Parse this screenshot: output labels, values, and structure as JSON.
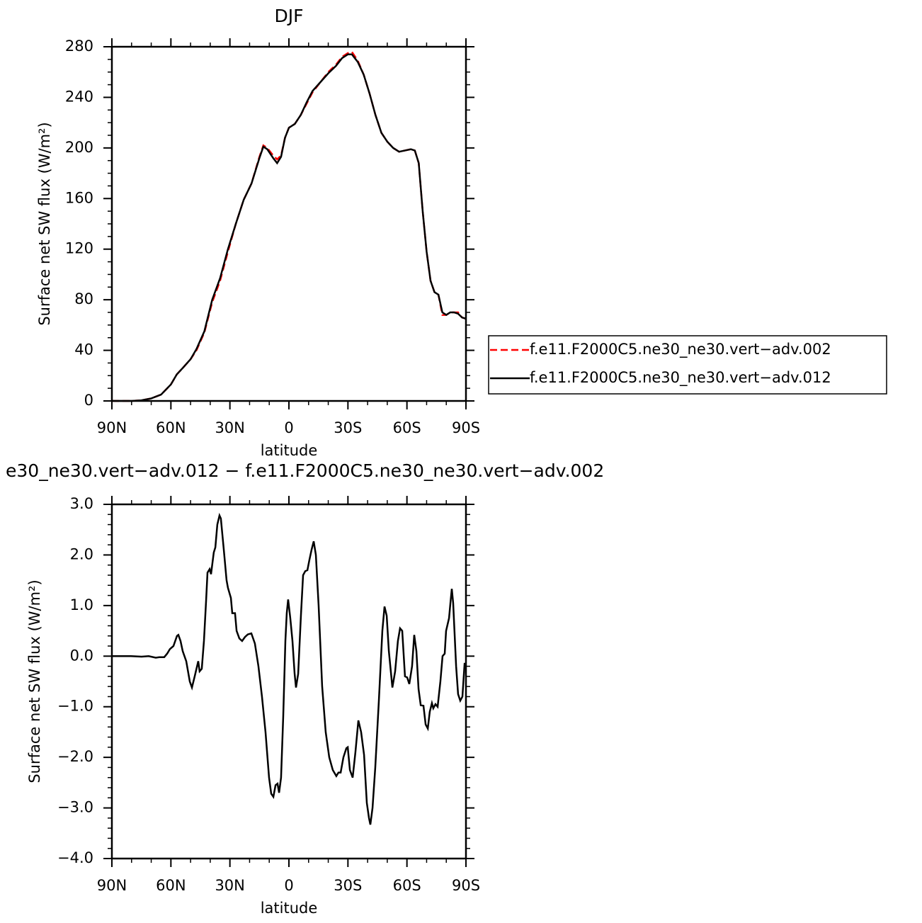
{
  "chart_data": [
    {
      "type": "line",
      "title": "DJF",
      "xlabel": "latitude",
      "ylabel": "Surface net SW flux (W/m²)",
      "x": [
        90,
        85,
        80,
        75,
        70,
        65,
        60,
        57,
        54,
        50,
        47,
        43,
        39,
        35,
        31,
        27,
        23,
        19,
        15,
        13,
        11,
        8,
        6,
        4,
        2,
        0,
        -3,
        -6,
        -9,
        -12,
        -16,
        -20,
        -24,
        -27,
        -30,
        -32,
        -35,
        -38,
        -41,
        -44,
        -47,
        -50,
        -53,
        -56,
        -59,
        -62,
        -64,
        -66,
        -68,
        -70,
        -72,
        -74,
        -76,
        -78,
        -80,
        -82,
        -84,
        -86,
        -88,
        -90
      ],
      "series": [
        {
          "name": "f.e11.F2000C5.ne30_ne30.vert−adv.002",
          "color": "#ff0000",
          "dash": "dashed",
          "values": [
            0,
            0,
            0,
            0.5,
            2,
            5,
            13,
            21,
            26,
            33,
            40,
            54,
            78,
            95,
            118,
            140,
            159,
            172,
            193,
            202,
            200,
            194,
            191,
            194,
            208,
            216,
            219,
            226,
            235,
            244,
            252,
            260,
            266,
            272,
            275,
            276,
            269,
            258,
            243,
            226,
            212,
            205,
            200,
            197,
            198,
            199,
            198,
            188,
            150,
            118,
            95,
            86,
            84,
            68,
            68,
            70,
            70,
            70,
            66,
            65
          ]
        },
        {
          "name": "f.e11.F2000C5.ne30_ne30.vert−adv.012",
          "color": "#000000",
          "dash": "solid",
          "values": [
            0,
            0,
            0,
            0.5,
            2,
            5,
            13,
            21,
            26,
            33,
            41,
            55,
            80,
            97,
            120,
            140,
            159,
            172,
            192,
            201,
            199,
            192,
            188,
            193,
            208,
            216,
            219,
            226,
            236,
            245,
            252,
            259,
            265,
            271,
            274,
            274,
            268,
            258,
            243,
            226,
            212,
            205,
            200,
            197,
            198,
            199,
            198,
            188,
            150,
            118,
            95,
            86,
            84,
            70,
            68,
            70,
            70,
            69,
            66,
            65
          ]
        }
      ],
      "xlim": [
        90,
        -90
      ],
      "xticks": [
        {
          "value": 90,
          "label": "90N"
        },
        {
          "value": 60,
          "label": "60N"
        },
        {
          "value": 30,
          "label": "30N"
        },
        0,
        {
          "value": -30,
          "label": "30S"
        },
        {
          "value": -60,
          "label": "60S"
        },
        {
          "value": -90,
          "label": "90S"
        }
      ],
      "ylim": [
        0,
        280
      ],
      "yticks": [
        0,
        40,
        80,
        120,
        160,
        200,
        240,
        280
      ],
      "legend": "right"
    },
    {
      "type": "line",
      "title": "e30_ne30.vert−adv.012 − f.e11.F2000C5.ne30_ne30.vert−adv.002",
      "xlabel": "latitude",
      "ylabel": "Surface net SW flux (W/m²)",
      "x": [
        90,
        80.3,
        74.9,
        71.3,
        67.7,
        65.9,
        63.4,
        61.9,
        60.5,
        58.7,
        56.9,
        56.2,
        55.1,
        54,
        52.2,
        50.4,
        49.3,
        47.9,
        46.1,
        45.4,
        44.3,
        43.2,
        42.1,
        41.4,
        40.3,
        39.6,
        38.2,
        37.4,
        36.4,
        35.3,
        34.6,
        33.1,
        31.7,
        31,
        29.5,
        28.8,
        27.4,
        26.6,
        25.2,
        23.8,
        22.3,
        20.9,
        19.1,
        17.3,
        15.5,
        13.7,
        11.9,
        10.1,
        9,
        7.9,
        6.8,
        5.8,
        5,
        4,
        2.9,
        1.8,
        1.1,
        0.4,
        -0.7,
        -1.8,
        -2.9,
        -3.6,
        -4.7,
        -6.1,
        -7.2,
        -8.3,
        -9.4,
        -10.4,
        -11.5,
        -12.6,
        -13.7,
        -15.1,
        -16.9,
        -18.7,
        -20.5,
        -22.3,
        -24.1,
        -25.2,
        -26.3,
        -27.7,
        -29.2,
        -29.9,
        -31,
        -32.4,
        -33.8,
        -35.3,
        -36.7,
        -38.2,
        -39.6,
        -40.7,
        -41.4,
        -42.5,
        -43.9,
        -45.7,
        -47.5,
        -48.6,
        -49.7,
        -50.8,
        -52.6,
        -54,
        -55.4,
        -56.5,
        -57.6,
        -59,
        -60.1,
        -61.2,
        -62.6,
        -63.7,
        -64.8,
        -65.9,
        -67,
        -68.4,
        -69.5,
        -70.6,
        -71.6,
        -72.7,
        -73.4,
        -74.5,
        -75.6,
        -77,
        -78.1,
        -79.2,
        -79.9,
        -81.4,
        -82.1,
        -82.8,
        -83.5,
        -85,
        -86,
        -87.1,
        -88.2,
        -89.3,
        -90
      ],
      "values": [
        0,
        0,
        -0.01,
        0,
        -0.03,
        -0.02,
        -0.02,
        0.05,
        0.14,
        0.2,
        0.4,
        0.42,
        0.3,
        0.1,
        -0.1,
        -0.5,
        -0.62,
        -0.4,
        -0.1,
        -0.3,
        -0.25,
        0.3,
        1.1,
        1.65,
        1.72,
        1.62,
        2.05,
        2.15,
        2.6,
        2.78,
        2.72,
        2.1,
        1.5,
        1.35,
        1.15,
        0.85,
        0.85,
        0.5,
        0.35,
        0.3,
        0.38,
        0.43,
        0.45,
        0.25,
        -0.2,
        -0.8,
        -1.5,
        -2.4,
        -2.72,
        -2.78,
        -2.55,
        -2.52,
        -2.7,
        -2.4,
        -1.2,
        0.3,
        0.85,
        1.12,
        0.75,
        0.3,
        -0.35,
        -0.62,
        -0.35,
        0.8,
        1.6,
        1.68,
        1.7,
        1.9,
        2.1,
        2.27,
        2.0,
        1.0,
        -0.6,
        -1.5,
        -2.0,
        -2.25,
        -2.37,
        -2.3,
        -2.3,
        -2.0,
        -1.82,
        -1.8,
        -2.25,
        -2.4,
        -1.9,
        -1.27,
        -1.5,
        -1.95,
        -2.9,
        -3.2,
        -3.33,
        -3.0,
        -2.2,
        -0.9,
        0.5,
        0.98,
        0.8,
        0.1,
        -0.62,
        -0.3,
        0.3,
        0.55,
        0.5,
        -0.4,
        -0.42,
        -0.55,
        -0.2,
        0.42,
        0.1,
        -0.65,
        -0.97,
        -0.98,
        -1.35,
        -1.43,
        -1.1,
        -0.93,
        -1.03,
        -0.95,
        -1.0,
        -0.5,
        0.0,
        0.05,
        0.5,
        0.75,
        1.05,
        1.33,
        1.05,
        -0.2,
        -0.75,
        -0.88,
        -0.8,
        -0.15,
        -0.15
      ],
      "color": "#000000",
      "xlim": [
        90,
        -90
      ],
      "xticks": [
        {
          "value": 90,
          "label": "90N"
        },
        {
          "value": 60,
          "label": "60N"
        },
        {
          "value": 30,
          "label": "30N"
        },
        0,
        {
          "value": -30,
          "label": "30S"
        },
        {
          "value": -60,
          "label": "60S"
        },
        {
          "value": -90,
          "label": "90S"
        }
      ],
      "ylim": [
        -4,
        3
      ],
      "yticks": [
        {
          "value": 3,
          "label": "3.0"
        },
        {
          "value": 2,
          "label": "2.0"
        },
        {
          "value": 1,
          "label": "1.0"
        },
        {
          "value": 0,
          "label": "0.0"
        },
        {
          "value": -1,
          "label": "−1.0"
        },
        {
          "value": -2,
          "label": "−2.0"
        },
        {
          "value": -3,
          "label": "−3.0"
        },
        {
          "value": -4,
          "label": "−4.0"
        }
      ]
    }
  ]
}
